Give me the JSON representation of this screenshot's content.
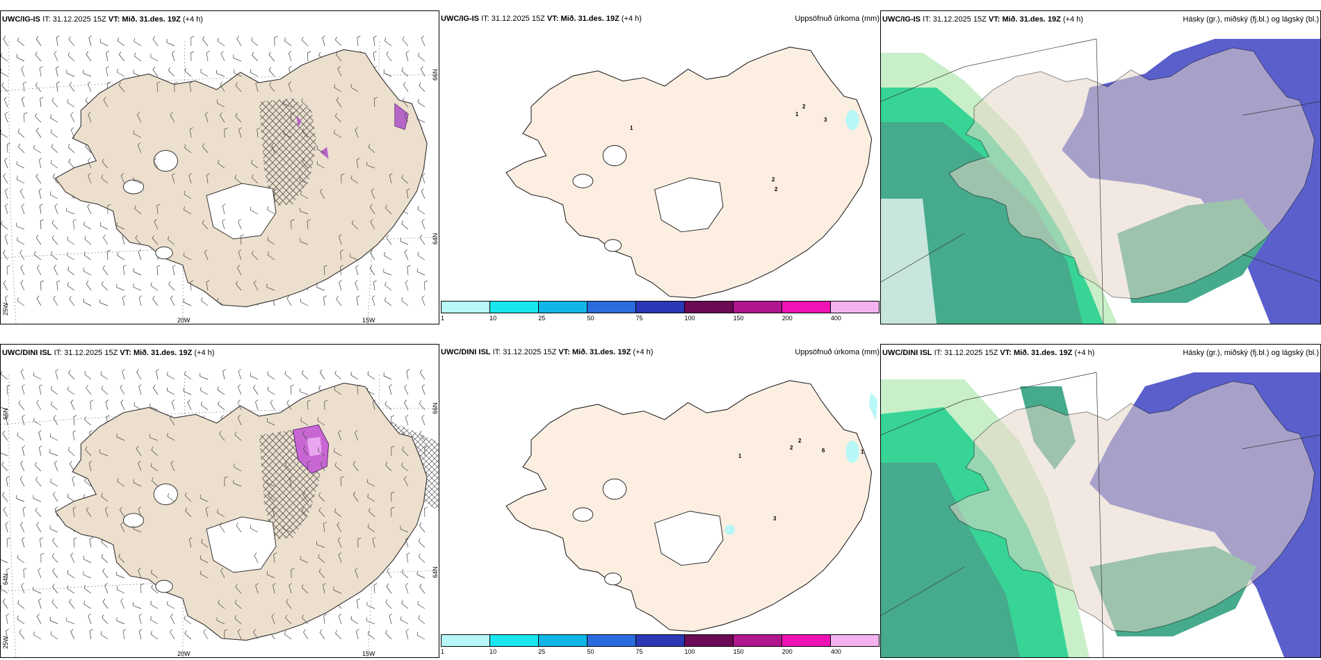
{
  "rows": [
    {
      "model": "UWC/IG-IS",
      "it_label": "IT:",
      "it": "31.12.2025 15Z",
      "vt_label": "VT:",
      "vt": "Mið. 31.des. 19Z",
      "lead": "(+4 h)",
      "precip_labels": [
        "1",
        "2",
        "1",
        "3",
        "2",
        "2"
      ]
    },
    {
      "model": "UWC/DINI ISL",
      "it_label": "IT:",
      "it": "31.12.2025 15Z",
      "vt_label": "VT:",
      "vt": "Mið. 31.des. 19Z",
      "lead": "(+4 h)",
      "precip_labels": [
        "1",
        "2",
        "2",
        "6",
        "1",
        "3"
      ]
    }
  ],
  "precip_title": "Uppsöfnuð úrkoma (mm)",
  "cloud_title": "Hásky (gr.), miðský (fj.bl.) og lágský (bl.)",
  "lat_labels": [
    "66N",
    "64N"
  ],
  "lon_labels": [
    "20W",
    "15W"
  ],
  "corner_lon": "25W",
  "colorbar": {
    "ticks": [
      "1",
      "10",
      "25",
      "50",
      "75",
      "100",
      "150",
      "200",
      "400"
    ],
    "colors": [
      "#b7f7f7",
      "#19e6ee",
      "#0fb6e6",
      "#2a6cde",
      "#2b38b6",
      "#6b0a55",
      "#b0168e",
      "#ef12b4",
      "#f4b2ef"
    ]
  },
  "colors": {
    "land_wind": "#ecdfcd",
    "land_precip": "#fcefe2",
    "land_cloud": "#e7d8c9",
    "high_cloud": "#5a5fcc",
    "low_cloud": "#46aa8c",
    "mid_cloud": "#1fcf8d",
    "light_cloud": "#c9efc8"
  }
}
